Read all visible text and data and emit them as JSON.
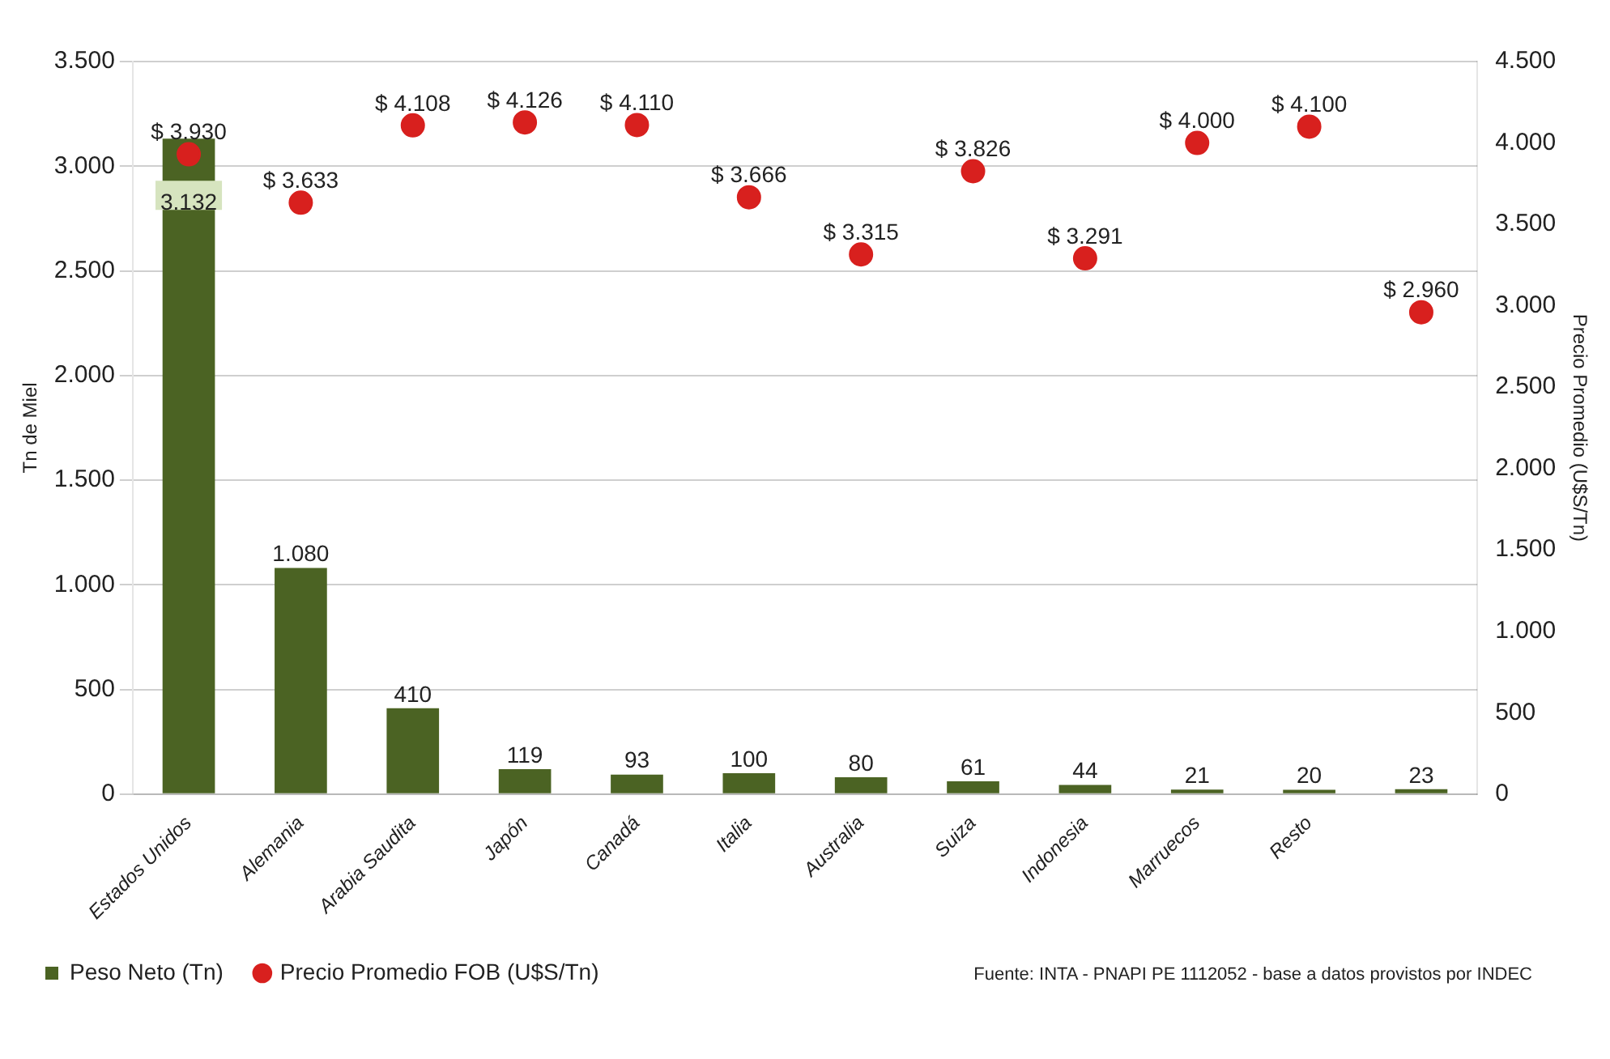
{
  "chart_data": {
    "type": "bar",
    "ylabel": "Tn de Miel",
    "y2label": "Precio Promedio (U$S/Tn)",
    "categories": [
      "Estados Unidos",
      "Alemania",
      "Arabia Saudita",
      "Japón",
      "Canadá",
      "Italia",
      "Australia",
      "Suiza",
      "Indonesia",
      "Marruecos",
      "Resto",
      null
    ],
    "series": [
      {
        "name": "Peso Neto (Tn)",
        "color": "#4b6323",
        "values": [
          3132,
          1080,
          410,
          119,
          93,
          100,
          80,
          61,
          44,
          21,
          20,
          23
        ],
        "value_labels": [
          "3.132",
          "1.080",
          "410",
          "119",
          "93",
          "100",
          "80",
          "61",
          "44",
          "21",
          "20",
          "23"
        ]
      },
      {
        "name": "Precio Promedio FOB (U$S/Tn)",
        "type": "scatter",
        "axis": "y2",
        "color": "#d8201e",
        "marker": "circle",
        "values": [
          3930,
          3633,
          4108,
          4126,
          4110,
          3666,
          3315,
          3826,
          3291,
          4000,
          4100,
          2960
        ],
        "value_labels": [
          "$ 3.930",
          "$ 3.633",
          "$ 4.108",
          "$ 4.126",
          "$ 4.110",
          "$ 3.666",
          "$ 3.315",
          "$ 3.826",
          "$ 3.291",
          "$ 4.000",
          "$ 4.100",
          "$ 2.960"
        ]
      }
    ],
    "ylim": [
      0,
      3500
    ],
    "yticks": [
      {
        "value": 0,
        "label": "0"
      },
      {
        "value": 500,
        "label": "500"
      },
      {
        "value": 1000,
        "label": "1.000"
      },
      {
        "value": 1500,
        "label": "1.500"
      },
      {
        "value": 2000,
        "label": "2.000"
      },
      {
        "value": 2500,
        "label": "2.500"
      },
      {
        "value": 3000,
        "label": "3.000"
      },
      {
        "value": 3500,
        "label": "3.500"
      }
    ],
    "y2lim": [
      0,
      4500
    ],
    "y2ticks": [
      {
        "value": 0,
        "label": "0"
      },
      {
        "value": 500,
        "label": "500"
      },
      {
        "value": 1000,
        "label": "1.000"
      },
      {
        "value": 1500,
        "label": "1.500"
      },
      {
        "value": 2000,
        "label": "2.000"
      },
      {
        "value": 2500,
        "label": "2.500"
      },
      {
        "value": 3000,
        "label": "3.000"
      },
      {
        "value": 3500,
        "label": "3.500"
      },
      {
        "value": 4000,
        "label": "4.000"
      },
      {
        "value": 4500,
        "label": "4.500"
      }
    ],
    "grid": "y",
    "legend": "bottom left",
    "annotations": [
      "Fuente:  INTA - PNAPI PE 1112052 -  base a datos provistos por INDEC"
    ]
  }
}
